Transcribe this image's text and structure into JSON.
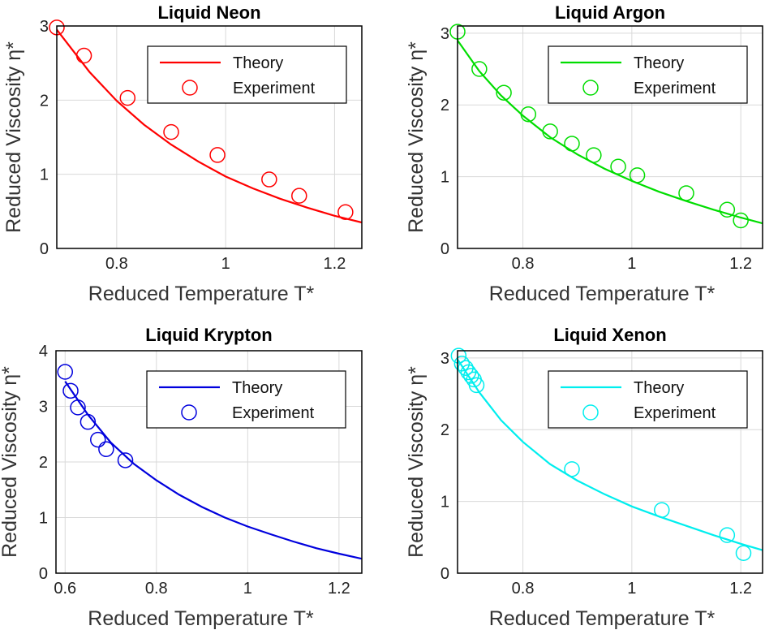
{
  "chart_data": [
    {
      "type": "line",
      "title": "Liquid Neon",
      "xlabel": "Reduced Temperature T*",
      "ylabel": "Reduced  Viscosity  η*",
      "color": "#ff0000",
      "xlim": [
        0.69,
        1.25
      ],
      "ylim": [
        0,
        3
      ],
      "xticks": [
        0.8,
        1,
        1.2
      ],
      "xtick_labels": [
        "0.8",
        "1",
        "1.2"
      ],
      "yticks": [
        0,
        1,
        2,
        3
      ],
      "ytick_labels": [
        "0",
        "1",
        "2",
        "3"
      ],
      "grid": true,
      "legend": "top-right",
      "series": [
        {
          "name": "Theory",
          "style": "line",
          "x": [
            0.69,
            0.75,
            0.8,
            0.85,
            0.9,
            0.95,
            1.0,
            1.05,
            1.1,
            1.15,
            1.2,
            1.25
          ],
          "y": [
            2.95,
            2.38,
            1.99,
            1.67,
            1.4,
            1.17,
            0.97,
            0.81,
            0.67,
            0.55,
            0.44,
            0.35
          ]
        },
        {
          "name": "Experiment",
          "style": "marker",
          "x": [
            0.69,
            0.74,
            0.82,
            0.9,
            0.985,
            1.08,
            1.135,
            1.22
          ],
          "y": [
            2.98,
            2.6,
            2.03,
            1.57,
            1.26,
            0.93,
            0.71,
            0.49
          ]
        }
      ]
    },
    {
      "type": "line",
      "title": "Liquid Argon",
      "xlabel": "Reduced Temperature T*",
      "ylabel": "Reduced  Viscosity  η*",
      "color": "#00dd00",
      "xlim": [
        0.68,
        1.24
      ],
      "ylim": [
        0,
        3.1
      ],
      "xticks": [
        0.8,
        1,
        1.2
      ],
      "xtick_labels": [
        "0.8",
        "1",
        "1.2"
      ],
      "yticks": [
        0,
        1,
        2,
        3
      ],
      "ytick_labels": [
        "0",
        "1",
        "2",
        "3"
      ],
      "grid": true,
      "legend": "top-right",
      "series": [
        {
          "name": "Theory",
          "style": "line",
          "x": [
            0.68,
            0.72,
            0.76,
            0.8,
            0.85,
            0.9,
            0.95,
            1.0,
            1.05,
            1.1,
            1.15,
            1.2,
            1.24
          ],
          "y": [
            2.9,
            2.47,
            2.13,
            1.85,
            1.55,
            1.31,
            1.11,
            0.94,
            0.79,
            0.66,
            0.54,
            0.43,
            0.35
          ]
        },
        {
          "name": "Experiment",
          "style": "marker",
          "x": [
            0.68,
            0.72,
            0.765,
            0.81,
            0.85,
            0.89,
            0.93,
            0.975,
            1.01,
            1.1,
            1.175,
            1.2
          ],
          "y": [
            3.02,
            2.5,
            2.17,
            1.87,
            1.63,
            1.46,
            1.3,
            1.14,
            1.02,
            0.77,
            0.54,
            0.39
          ]
        }
      ]
    },
    {
      "type": "line",
      "title": "Liquid Krypton",
      "xlabel": "Reduced Temperature T*",
      "ylabel": "Reduced  Viscosity  η*",
      "color": "#0000dd",
      "xlim": [
        0.58,
        1.25
      ],
      "ylim": [
        0,
        4
      ],
      "xticks": [
        0.6,
        0.8,
        1,
        1.2
      ],
      "xtick_labels": [
        "0.6",
        "0.8",
        "1",
        "1.2"
      ],
      "yticks": [
        0,
        1,
        2,
        3,
        4
      ],
      "ytick_labels": [
        "0",
        "1",
        "2",
        "3",
        "4"
      ],
      "grid": true,
      "legend": "top-right",
      "series": [
        {
          "name": "Theory",
          "style": "line",
          "x": [
            0.6,
            0.65,
            0.7,
            0.75,
            0.8,
            0.85,
            0.9,
            0.95,
            1.0,
            1.05,
            1.1,
            1.15,
            1.2,
            1.25
          ],
          "y": [
            3.45,
            2.85,
            2.35,
            1.97,
            1.67,
            1.41,
            1.19,
            1.0,
            0.84,
            0.7,
            0.57,
            0.45,
            0.35,
            0.26
          ]
        },
        {
          "name": "Experiment",
          "style": "marker",
          "x": [
            0.6,
            0.612,
            0.628,
            0.65,
            0.672,
            0.69,
            0.732
          ],
          "y": [
            3.62,
            3.28,
            2.98,
            2.72,
            2.4,
            2.23,
            2.03
          ]
        }
      ]
    },
    {
      "type": "line",
      "title": "Liquid Xenon",
      "xlabel": "Reduced Temperature T*",
      "ylabel": "Reduced  Viscosity  η*",
      "color": "#00eeee",
      "xlim": [
        0.68,
        1.24
      ],
      "ylim": [
        0,
        3.1
      ],
      "xticks": [
        0.8,
        1,
        1.2
      ],
      "xtick_labels": [
        "0.8",
        "1",
        "1.2"
      ],
      "yticks": [
        0,
        1,
        2,
        3
      ],
      "ytick_labels": [
        "0",
        "1",
        "2",
        "3"
      ],
      "grid": true,
      "legend": "top-right",
      "series": [
        {
          "name": "Theory",
          "style": "line",
          "x": [
            0.68,
            0.72,
            0.76,
            0.8,
            0.85,
            0.9,
            0.95,
            1.0,
            1.05,
            1.1,
            1.15,
            1.2,
            1.24
          ],
          "y": [
            2.98,
            2.52,
            2.13,
            1.83,
            1.52,
            1.29,
            1.1,
            0.93,
            0.79,
            0.66,
            0.53,
            0.41,
            0.32
          ]
        },
        {
          "name": "Experiment",
          "style": "marker",
          "x": [
            0.682,
            0.688,
            0.695,
            0.7,
            0.705,
            0.71,
            0.715,
            0.89,
            1.055,
            1.175,
            1.205
          ],
          "y": [
            3.03,
            2.92,
            2.86,
            2.8,
            2.75,
            2.7,
            2.62,
            1.45,
            0.88,
            0.53,
            0.28
          ]
        }
      ]
    }
  ]
}
